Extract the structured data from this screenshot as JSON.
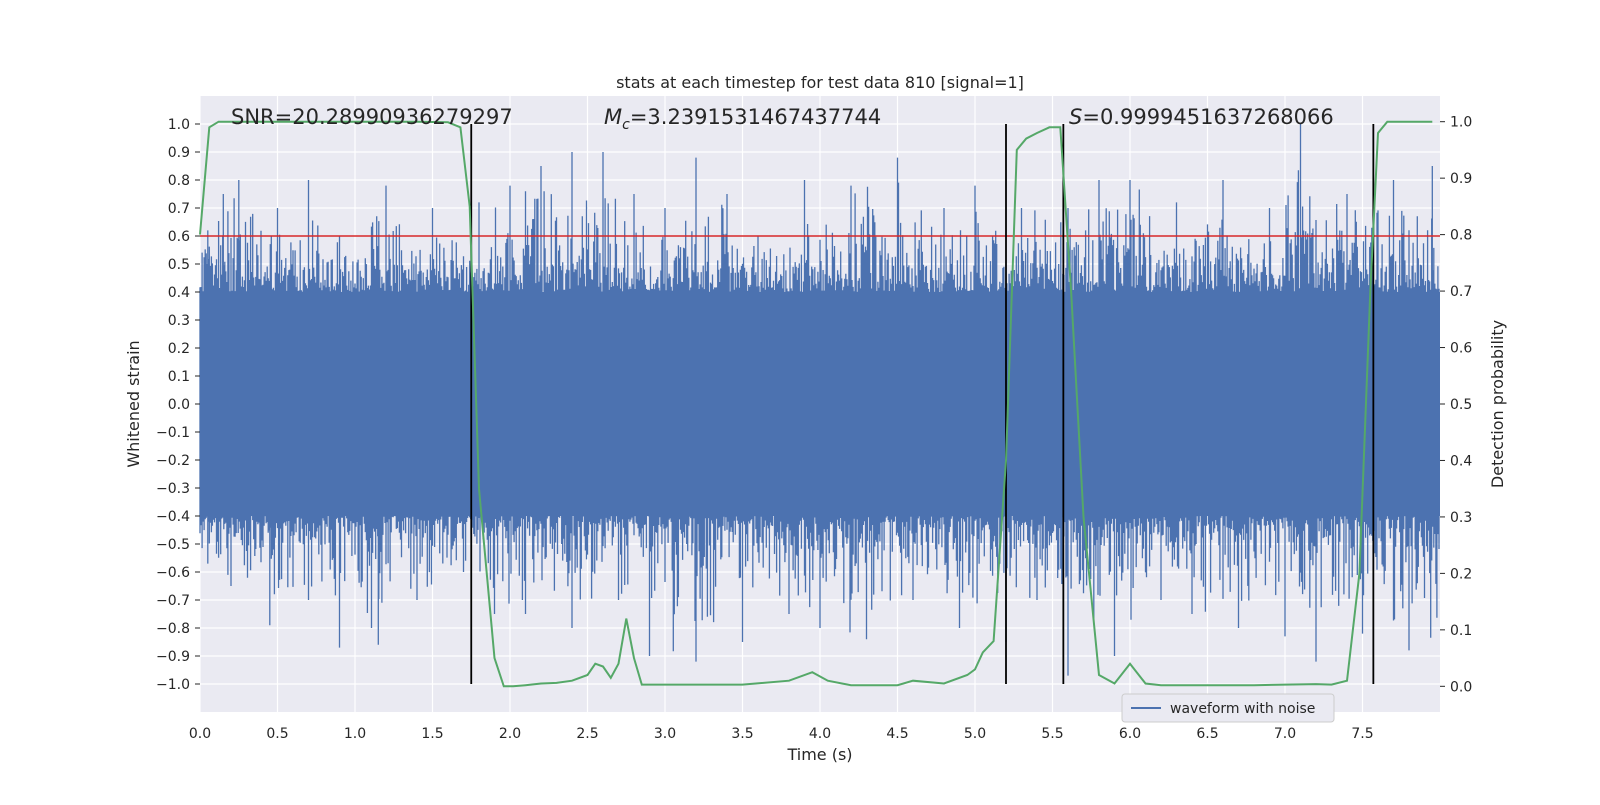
{
  "chart_data": {
    "type": "line",
    "title": "stats at each timestep for test data 810 [signal=1]",
    "xlabel": "Time (s)",
    "ylabel": "Whitened strain",
    "y2label": "Detection probability",
    "xlim": [
      0.0,
      8.0
    ],
    "ylim": [
      -1.1,
      1.1
    ],
    "y2lim": [
      -0.0455,
      1.0455
    ],
    "xticks": [
      0.0,
      0.5,
      1.0,
      1.5,
      2.0,
      2.5,
      3.0,
      3.5,
      4.0,
      4.5,
      5.0,
      5.5,
      6.0,
      6.5,
      7.0,
      7.5
    ],
    "xtick_labels": [
      "0.0",
      "0.5",
      "1.0",
      "1.5",
      "2.0",
      "2.5",
      "3.0",
      "3.5",
      "4.0",
      "4.5",
      "5.0",
      "5.5",
      "6.0",
      "6.5",
      "7.0",
      "7.5"
    ],
    "yticks": [
      1.0,
      0.9,
      0.8,
      0.7,
      0.6,
      0.5,
      0.4,
      0.3,
      0.2,
      0.1,
      0.0,
      -0.1,
      -0.2,
      -0.3,
      -0.4,
      -0.5,
      -0.6,
      -0.7,
      -0.8,
      -0.9,
      -1.0
    ],
    "ytick_labels": [
      "1.0",
      "0.9",
      "0.8",
      "0.7",
      "0.6",
      "0.5",
      "0.4",
      "0.3",
      "0.2",
      "0.1",
      "0.0",
      "−0.1",
      "−0.2",
      "−0.3",
      "−0.4",
      "−0.5",
      "−0.6",
      "−0.7",
      "−0.8",
      "−0.9",
      "−1.0"
    ],
    "y2ticks": [
      0.0,
      0.1,
      0.2,
      0.3,
      0.4,
      0.5,
      0.6,
      0.7,
      0.8,
      0.9,
      1.0
    ],
    "y2tick_labels": [
      "0.0",
      "0.1",
      "0.2",
      "0.3",
      "0.4",
      "0.5",
      "0.6",
      "0.7",
      "0.8",
      "0.9",
      "1.0"
    ],
    "grid": true,
    "series": [
      {
        "name": "waveform with noise",
        "axis": "left",
        "color": "#4c72b0",
        "description": "dense noisy whitened strain trace, core band about ±0.4, spikes up to about ±1.0",
        "band": [
          -0.4,
          0.4
        ],
        "spike_max": [
          [
            0.05,
            0.62
          ],
          [
            0.15,
            0.75
          ],
          [
            0.25,
            0.8
          ],
          [
            0.5,
            0.7
          ],
          [
            0.7,
            0.8
          ],
          [
            0.9,
            0.6
          ],
          [
            1.2,
            0.78
          ],
          [
            1.5,
            0.7
          ],
          [
            1.8,
            0.72
          ],
          [
            2.0,
            0.78
          ],
          [
            2.2,
            0.85
          ],
          [
            2.4,
            0.9
          ],
          [
            2.6,
            0.9
          ],
          [
            2.8,
            0.75
          ],
          [
            3.0,
            0.7
          ],
          [
            3.2,
            0.88
          ],
          [
            3.4,
            0.75
          ],
          [
            3.6,
            0.6
          ],
          [
            3.9,
            0.8
          ],
          [
            4.2,
            0.78
          ],
          [
            4.5,
            0.88
          ],
          [
            4.8,
            0.7
          ],
          [
            5.0,
            0.78
          ],
          [
            5.3,
            0.7
          ],
          [
            5.6,
            0.7
          ],
          [
            5.8,
            0.8
          ],
          [
            6.0,
            0.8
          ],
          [
            6.3,
            0.72
          ],
          [
            6.6,
            0.8
          ],
          [
            6.9,
            0.7
          ],
          [
            7.1,
            1.0
          ],
          [
            7.4,
            0.75
          ],
          [
            7.7,
            0.8
          ],
          [
            7.95,
            0.85
          ]
        ],
        "spike_min": [
          [
            0.05,
            -0.57
          ],
          [
            0.2,
            -0.65
          ],
          [
            0.45,
            -0.79
          ],
          [
            0.7,
            -0.7
          ],
          [
            0.9,
            -0.87
          ],
          [
            1.15,
            -0.86
          ],
          [
            1.4,
            -0.7
          ],
          [
            1.7,
            -0.6
          ],
          [
            1.9,
            -0.75
          ],
          [
            2.1,
            -0.75
          ],
          [
            2.4,
            -0.8
          ],
          [
            2.7,
            -0.7
          ],
          [
            2.9,
            -0.9
          ],
          [
            3.2,
            -0.92
          ],
          [
            3.5,
            -0.85
          ],
          [
            3.8,
            -0.75
          ],
          [
            4.0,
            -0.8
          ],
          [
            4.3,
            -0.84
          ],
          [
            4.6,
            -0.7
          ],
          [
            4.9,
            -0.8
          ],
          [
            5.2,
            -0.85
          ],
          [
            5.4,
            -0.7
          ],
          [
            5.6,
            -0.97
          ],
          [
            5.9,
            -0.9
          ],
          [
            6.2,
            -0.7
          ],
          [
            6.4,
            -0.75
          ],
          [
            6.7,
            -0.8
          ],
          [
            7.0,
            -0.83
          ],
          [
            7.2,
            -0.92
          ],
          [
            7.5,
            -0.82
          ],
          [
            7.8,
            -0.88
          ]
        ]
      },
      {
        "name": "detection probability",
        "axis": "right",
        "color": "#55a868",
        "x": [
          0.0,
          0.06,
          0.12,
          0.3,
          0.6,
          1.0,
          1.4,
          1.6,
          1.68,
          1.74,
          1.8,
          1.9,
          1.96,
          2.02,
          2.1,
          2.2,
          2.3,
          2.4,
          2.5,
          2.55,
          2.6,
          2.65,
          2.7,
          2.75,
          2.8,
          2.85,
          2.92,
          3.0,
          3.5,
          3.8,
          3.95,
          4.05,
          4.2,
          4.5,
          4.6,
          4.8,
          4.95,
          5.0,
          5.05,
          5.12,
          5.2,
          5.27,
          5.33,
          5.4,
          5.48,
          5.55,
          5.62,
          5.7,
          5.8,
          5.9,
          6.0,
          6.1,
          6.2,
          6.4,
          6.8,
          7.0,
          7.2,
          7.3,
          7.4,
          7.48,
          7.55,
          7.6,
          7.66,
          7.72,
          7.8,
          7.95
        ],
        "y": [
          0.8,
          0.99,
          1.0,
          1.0,
          1.0,
          1.0,
          1.0,
          0.999,
          0.99,
          0.85,
          0.35,
          0.05,
          0.0,
          0.0,
          0.002,
          0.005,
          0.006,
          0.01,
          0.02,
          0.04,
          0.035,
          0.015,
          0.04,
          0.12,
          0.05,
          0.003,
          0.003,
          0.003,
          0.003,
          0.01,
          0.025,
          0.01,
          0.002,
          0.002,
          0.01,
          0.005,
          0.02,
          0.03,
          0.06,
          0.08,
          0.4,
          0.95,
          0.97,
          0.98,
          0.99,
          0.99,
          0.7,
          0.3,
          0.02,
          0.005,
          0.04,
          0.005,
          0.002,
          0.002,
          0.002,
          0.003,
          0.004,
          0.003,
          0.01,
          0.2,
          0.7,
          0.98,
          1.0,
          1.0,
          1.0,
          1.0
        ]
      }
    ],
    "hlines": [
      {
        "y": 0.6,
        "color": "#d62728"
      }
    ],
    "vlines": [
      {
        "x": 1.75
      },
      {
        "x": 5.2
      },
      {
        "x": 5.57
      },
      {
        "x": 7.57
      }
    ],
    "legend": {
      "position": "lower-right",
      "entries": [
        "waveform with noise"
      ]
    },
    "annotations": [
      {
        "text": "SNR=20.28990936279297",
        "x": 0.2
      },
      {
        "symbol": "Mc",
        "value": "=3.2391531467437744",
        "x": 2.6
      },
      {
        "symbol": "S",
        "value": "=0.9999451637268066",
        "x": 5.6
      }
    ]
  }
}
